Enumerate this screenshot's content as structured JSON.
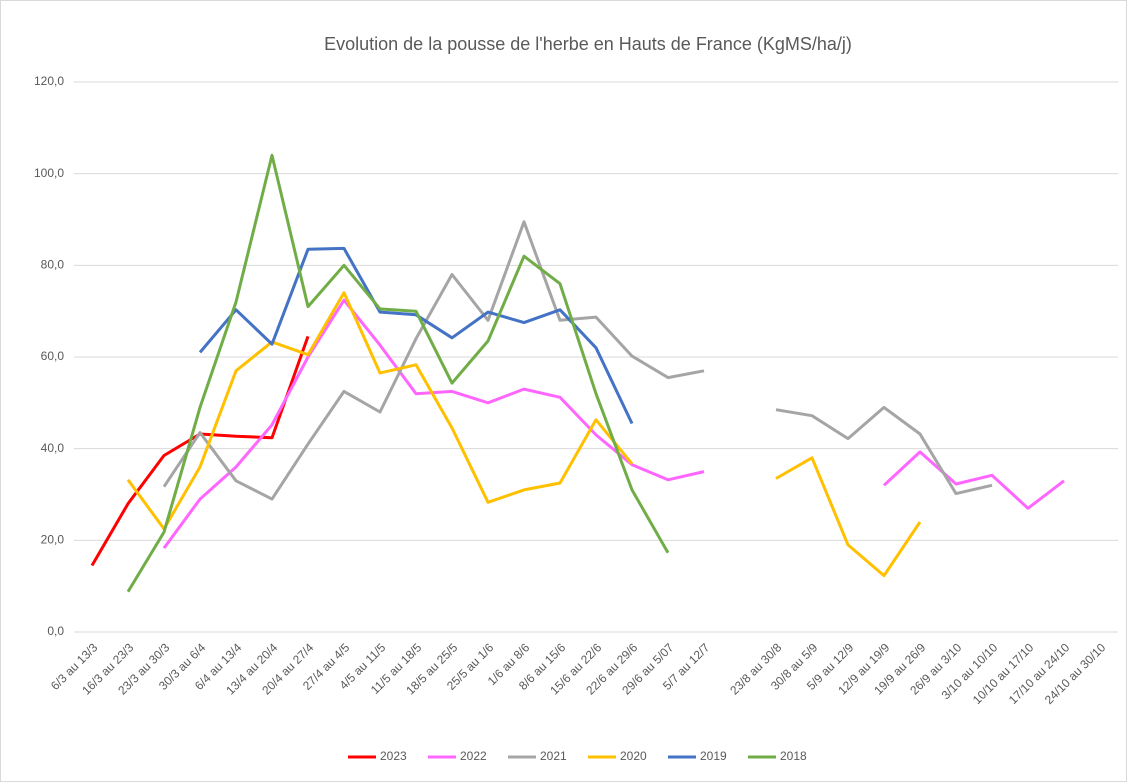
{
  "chart_data": {
    "type": "line",
    "title": "Evolution de la pousse de l'herbe en Hauts de France (KgMS/ha/j)",
    "categories": [
      "6/3 au 13/3",
      "16/3 au 23/3",
      "23/3 au 30/3",
      "30/3 au 6/4",
      "6/4 au 13/4",
      "13/4 au 20/4",
      "20/4 au 27/4",
      "27/4 au 4/5",
      "4/5 au 11/5",
      "11/5 au 18/5",
      "18/5 au 25/5",
      "25/5 au 1/6",
      "1/6 au 8/6",
      "8/6 au 15/6",
      "15/6 au 22/6",
      "22/6 au 29/6",
      "29/6 au 5/07",
      "5/7 au 12/7",
      null,
      "23/8 au 30/8",
      "30/8 au 5/9",
      "5/9 au 12/9",
      "12/9 au 19/9",
      "19/9 au 26/9",
      "26/9 au 3/10",
      "3/10 au 10/10",
      "10/10 au 17/10",
      "17/10 au 24/10",
      "24/10 au 30/10"
    ],
    "series": [
      {
        "name": "2023",
        "color": "#ff0000",
        "values": [
          14.5,
          28,
          38.5,
          43.2,
          42.7,
          42.4,
          64.5,
          null,
          null,
          null,
          null,
          null,
          null,
          null,
          null,
          null,
          null,
          null,
          null,
          null,
          null,
          null,
          null,
          null,
          null,
          null,
          null,
          null,
          null
        ]
      },
      {
        "name": "2022",
        "color": "#ff66ff",
        "values": [
          null,
          null,
          18.3,
          29,
          36,
          45.2,
          60,
          72.4,
          62.6,
          52,
          52.5,
          50,
          53,
          51.2,
          43,
          36.5,
          33.2,
          35,
          null,
          null,
          null,
          null,
          32,
          39.3,
          32.3,
          34.2,
          27,
          33,
          null
        ]
      },
      {
        "name": "2021",
        "color": "#a5a5a5",
        "values": [
          null,
          null,
          31.7,
          43.5,
          33,
          29,
          41,
          52.5,
          48,
          64,
          78,
          68,
          89.5,
          68,
          68.7,
          60.2,
          55.5,
          57,
          null,
          48.5,
          47.2,
          42.2,
          49,
          43.2,
          30.2,
          32,
          null,
          null,
          null
        ]
      },
      {
        "name": "2020",
        "color": "#ffc000",
        "values": [
          null,
          33.2,
          22.5,
          36,
          57,
          63.3,
          60.5,
          74,
          56.5,
          58.3,
          44.5,
          28.3,
          31,
          32.5,
          46.3,
          36.7,
          null,
          null,
          null,
          33.5,
          38,
          19,
          12.3,
          24,
          null,
          null,
          null,
          null,
          null
        ]
      },
      {
        "name": "2019",
        "color": "#4472c4",
        "values": [
          null,
          null,
          null,
          61,
          70.3,
          62.8,
          83.5,
          83.7,
          69.8,
          69.2,
          64.2,
          69.8,
          67.5,
          70.3,
          62,
          45.5,
          null,
          null,
          null,
          null,
          null,
          null,
          null,
          null,
          null,
          null,
          null,
          null,
          null
        ]
      },
      {
        "name": "2018",
        "color": "#70ad47",
        "values": [
          null,
          8.8,
          21.8,
          49,
          72,
          104,
          71,
          80,
          70.5,
          70,
          54.3,
          63.5,
          82,
          76,
          52,
          31,
          17.3,
          null,
          null,
          null,
          null,
          null,
          null,
          null,
          null,
          null,
          null,
          null,
          null
        ]
      }
    ],
    "ylim": [
      0,
      120
    ],
    "yticks": [
      {
        "value": 0,
        "label": "0,0"
      },
      {
        "value": 20,
        "label": "20,0"
      },
      {
        "value": 40,
        "label": "40,0"
      },
      {
        "value": 60,
        "label": "60,0"
      },
      {
        "value": 80,
        "label": "80,0"
      },
      {
        "value": 100,
        "label": "100,0"
      },
      {
        "value": 120,
        "label": "120,0"
      }
    ],
    "grid": true,
    "legend": "bottom"
  }
}
